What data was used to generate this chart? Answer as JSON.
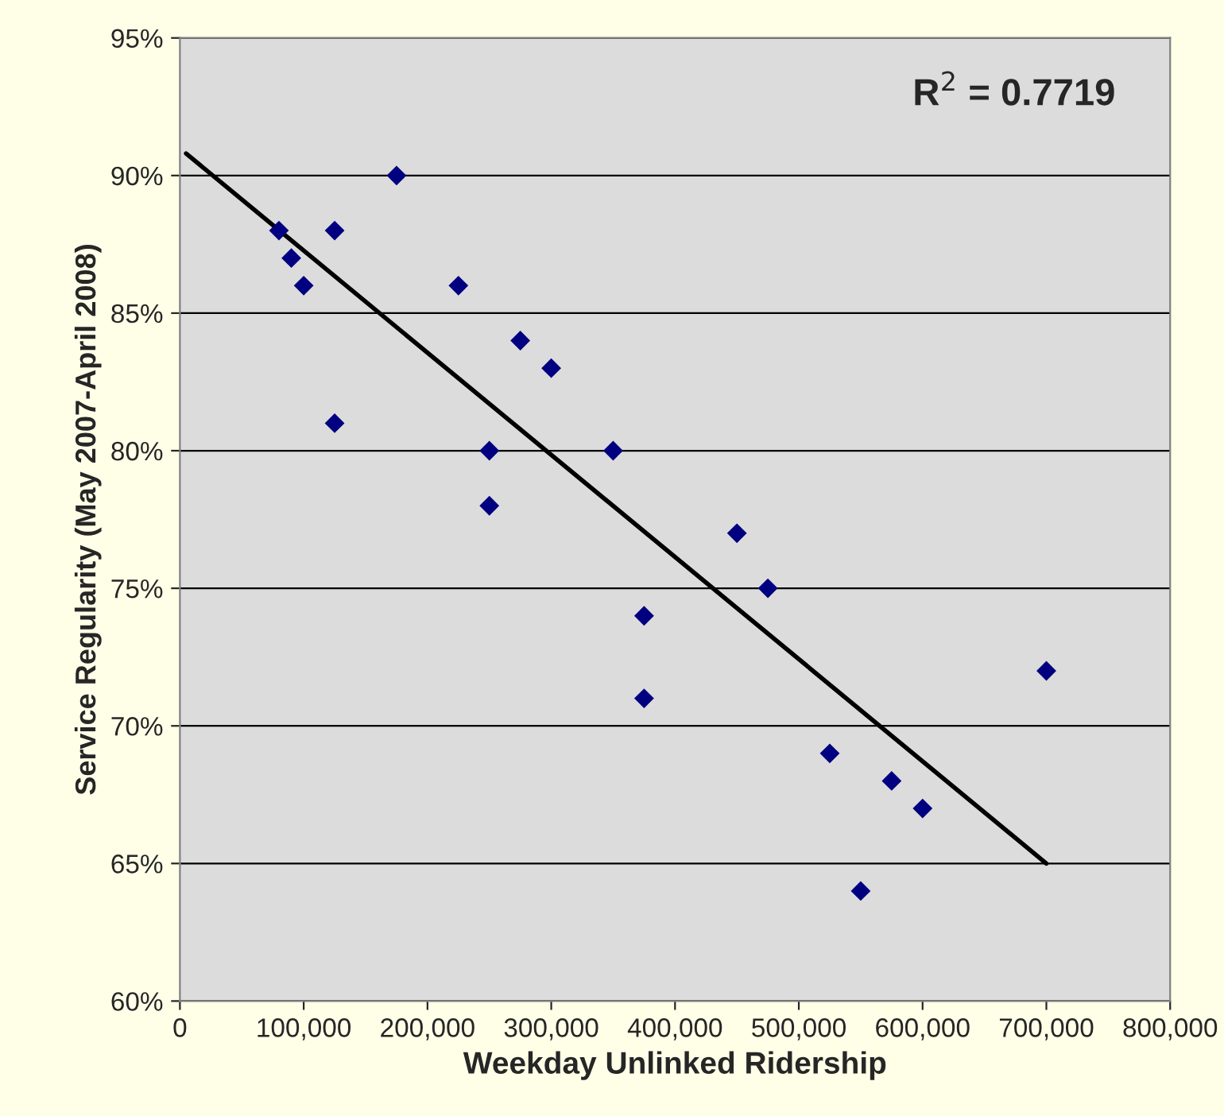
{
  "chart_data": {
    "type": "scatter",
    "xlabel": "Weekday Unlinked Ridership",
    "ylabel": "Service Regularity (May 2007-April 2008)",
    "annotations": [
      "R$^{2}$ = 0.7719"
    ],
    "series": [
      {
        "color": "#000080",
        "marker": "diamond",
        "x": [
          80000,
          90000,
          100000,
          125000,
          125000,
          175000,
          225000,
          250000,
          250000,
          275000,
          300000,
          350000,
          375000,
          375000,
          450000,
          475000,
          525000,
          550000,
          575000,
          600000,
          700000
        ],
        "values": [
          88,
          87,
          86,
          88,
          81,
          90,
          86,
          80,
          78,
          84,
          83,
          80,
          74,
          71,
          77,
          75,
          69,
          64,
          68,
          67,
          72
        ]
      },
      {
        "type": "line",
        "color": "#000000",
        "marker": "none",
        "line_style": "solid",
        "x": [
          5000,
          700000
        ],
        "values": [
          90.8,
          65.0
        ]
      }
    ],
    "xlim": [
      0,
      800000
    ],
    "xticks": [
      {
        "value": 0,
        "label": "0"
      },
      {
        "value": 100000,
        "label": "100,000"
      },
      {
        "value": 200000,
        "label": "200,000"
      },
      {
        "value": 300000,
        "label": "300,000"
      },
      {
        "value": 400000,
        "label": "400,000"
      },
      {
        "value": 500000,
        "label": "500,000"
      },
      {
        "value": 600000,
        "label": "600,000"
      },
      {
        "value": 700000,
        "label": "700,000"
      },
      {
        "value": 800000,
        "label": "800,000"
      }
    ],
    "ylim": [
      60,
      95
    ],
    "yticks": [
      {
        "value": 60,
        "label": "60%"
      },
      {
        "value": 65,
        "label": "65%"
      },
      {
        "value": 70,
        "label": "70%"
      },
      {
        "value": 75,
        "label": "75%"
      },
      {
        "value": 80,
        "label": "80%"
      },
      {
        "value": 85,
        "label": "85%"
      },
      {
        "value": 90,
        "label": "90%"
      },
      {
        "value": 95,
        "label": "95%"
      }
    ],
    "grid": "y",
    "legend": false
  }
}
